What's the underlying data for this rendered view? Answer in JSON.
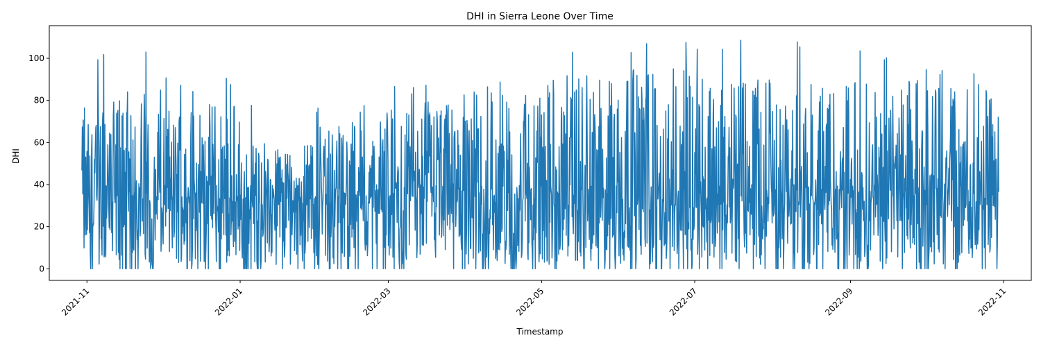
{
  "chart_data": {
    "type": "line",
    "title": "DHI in Sierra Leone Over Time",
    "xlabel": "Timestamp",
    "ylabel": "DHI",
    "x_range": [
      "2021-10-30",
      "2022-10-30"
    ],
    "xlim": [
      "2021-10-17",
      "2022-11-12"
    ],
    "ylim": [
      -5.5,
      115.5
    ],
    "x_ticks": [
      "2021-11",
      "2022-01",
      "2022-03",
      "2022-05",
      "2022-07",
      "2022-09",
      "2022-11"
    ],
    "y_ticks": [
      0,
      20,
      40,
      60,
      80,
      100
    ],
    "grid": false,
    "line_color": "#1f77b4",
    "series": [
      {
        "name": "",
        "note": "Dense, noisy daily DHI series; approximate envelope sampled monthly",
        "monthly": [
          {
            "month": "2021-11",
            "min": 0,
            "max": 105,
            "typical_high": 85
          },
          {
            "month": "2021-12",
            "min": 0,
            "max": 91,
            "typical_high": 80
          },
          {
            "month": "2022-01",
            "min": 0,
            "max": 80,
            "typical_high": 60
          },
          {
            "month": "2022-02",
            "min": 0,
            "max": 80,
            "typical_high": 70
          },
          {
            "month": "2022-03",
            "min": 0,
            "max": 88,
            "typical_high": 80
          },
          {
            "month": "2022-04",
            "min": 0,
            "max": 90,
            "typical_high": 84
          },
          {
            "month": "2022-05",
            "min": 0,
            "max": 107,
            "typical_high": 92
          },
          {
            "month": "2022-06",
            "min": 0,
            "max": 110,
            "typical_high": 95
          },
          {
            "month": "2022-07",
            "min": 0,
            "max": 109,
            "typical_high": 92
          },
          {
            "month": "2022-08",
            "min": 0,
            "max": 109,
            "typical_high": 88
          },
          {
            "month": "2022-09",
            "min": 0,
            "max": 105,
            "typical_high": 90
          },
          {
            "month": "2022-10",
            "min": 0,
            "max": 96,
            "typical_high": 88
          }
        ]
      }
    ]
  }
}
